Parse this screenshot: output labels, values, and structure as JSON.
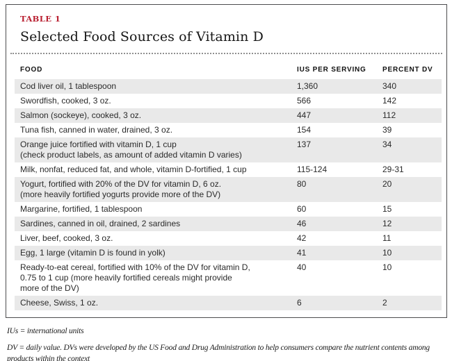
{
  "page": {
    "label": "TABLE 1",
    "title": "Selected Food Sources of Vitamin D"
  },
  "table": {
    "columns": [
      "FOOD",
      "IUS PER SERVING",
      "PERCENT DV"
    ],
    "rows": [
      {
        "food": "Cod liver oil, 1 tablespoon",
        "ius": "1,360",
        "dv": "340"
      },
      {
        "food": "Swordfish, cooked, 3 oz.",
        "ius": "566",
        "dv": "142"
      },
      {
        "food": "Salmon (sockeye), cooked, 3 oz.",
        "ius": "447",
        "dv": "112"
      },
      {
        "food": "Tuna fish, canned in water, drained, 3 oz.",
        "ius": "154",
        "dv": "39"
      },
      {
        "food": "Orange juice fortified with vitamin D, 1 cup\n(check product labels, as amount of added vitamin D varies)",
        "ius": "137",
        "dv": "34"
      },
      {
        "food": "Milk, nonfat, reduced fat, and whole, vitamin D-fortified, 1 cup",
        "ius": "115-124",
        "dv": "29-31"
      },
      {
        "food": "Yogurt, fortified with 20% of the DV for vitamin D, 6 oz.\n(more heavily fortified yogurts provide more of the DV)",
        "ius": "80",
        "dv": "20"
      },
      {
        "food": "Margarine, fortified, 1 tablespoon",
        "ius": "60",
        "dv": "15"
      },
      {
        "food": "Sardines, canned in oil, drained, 2 sardines",
        "ius": "46",
        "dv": "12"
      },
      {
        "food": "Liver, beef, cooked, 3 oz.",
        "ius": "42",
        "dv": "11"
      },
      {
        "food": "Egg, 1 large (vitamin D is found in yolk)",
        "ius": "41",
        "dv": "10"
      },
      {
        "food": "Ready-to-eat cereal, fortified with 10% of the DV for vitamin D,\n0.75 to 1 cup (more heavily fortified cereals might provide\nmore of the DV)",
        "ius": "40",
        "dv": "10"
      },
      {
        "food": "Cheese, Swiss, 1 oz.",
        "ius": "6",
        "dv": "2"
      }
    ]
  },
  "footnotes": {
    "line1": "IUs = international units",
    "line2": "DV = daily value. DVs were developed by the US Food and Drug Administration to help consumers compare the nutrient contents among products within the context"
  },
  "colors": {
    "accent_red": "#b92031",
    "row_shade": "#e9e9e9",
    "card_border": "#4c4c4e"
  }
}
